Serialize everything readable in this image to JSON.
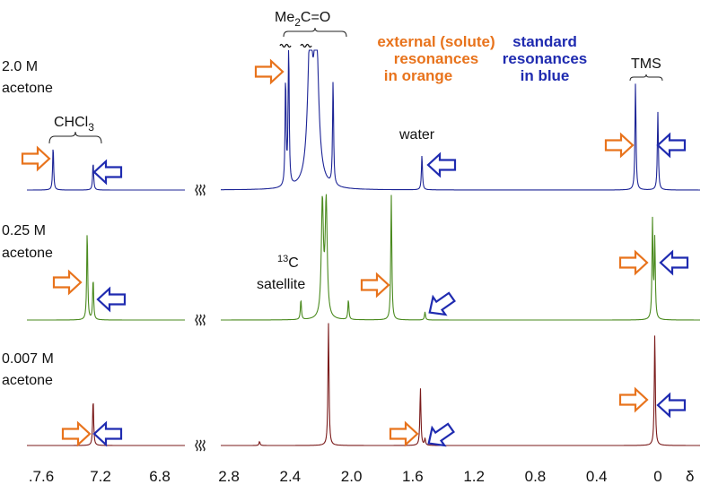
{
  "chart_data": {
    "type": "line",
    "title": "",
    "xlabel": "δ",
    "x_axis": {
      "reversed": true,
      "segments": [
        [
          7.7,
          6.64
        ],
        [
          2.9,
          -0.3
        ]
      ],
      "ticks": [
        {
          "value": 7.6,
          "label": ".7.6"
        },
        {
          "value": 7.2,
          "label": "7.2"
        },
        {
          "value": 6.8,
          "label": "6.8"
        },
        {
          "value": 2.8,
          "label": "2.8"
        },
        {
          "value": 2.4,
          "label": "2.4"
        },
        {
          "value": 2.0,
          "label": "2.0"
        },
        {
          "value": 1.6,
          "label": "1.6"
        },
        {
          "value": 1.2,
          "label": "1.2"
        },
        {
          "value": 0.8,
          "label": "0.8"
        },
        {
          "value": 0.4,
          "label": "0.4"
        },
        {
          "value": 0,
          "label": "0"
        }
      ],
      "unit_label": "δ"
    },
    "series": [
      {
        "name": "2.0 M acetone",
        "label_line1": "2.0 M",
        "label_line2": "acetone",
        "color": "#1c2496",
        "peaks": [
          {
            "ppm": 7.52,
            "intensity": 0.33,
            "width": 0.004
          },
          {
            "ppm": 7.25,
            "intensity": 0.21,
            "width": 0.004
          },
          {
            "ppm": 2.43,
            "intensity": 0.8,
            "width": 0.004
          },
          {
            "ppm": 2.41,
            "intensity": 1.1,
            "width": 0.004
          },
          {
            "ppm": 2.27,
            "intensity": 1.1,
            "width": 0.018
          },
          {
            "ppm": 2.23,
            "intensity": 1.1,
            "width": 0.018
          },
          {
            "ppm": 2.12,
            "intensity": 0.78,
            "width": 0.004
          },
          {
            "ppm": 1.54,
            "intensity": 0.26,
            "width": 0.004
          },
          {
            "ppm": 0.146,
            "intensity": 0.8,
            "width": 0.004
          },
          {
            "ppm": 0.0,
            "intensity": 0.58,
            "width": 0.004
          }
        ]
      },
      {
        "name": "0.25 M acetone",
        "label_line1": "0.25 M",
        "label_line2": "acetone",
        "color": "#4a8a1e",
        "peaks": [
          {
            "ppm": 7.29,
            "intensity": 0.67,
            "width": 0.004
          },
          {
            "ppm": 7.25,
            "intensity": 0.31,
            "width": 0.004
          },
          {
            "ppm": 2.33,
            "intensity": 0.15,
            "width": 0.004
          },
          {
            "ppm": 2.19,
            "intensity": 0.86,
            "width": 0.008
          },
          {
            "ppm": 2.165,
            "intensity": 0.86,
            "width": 0.008
          },
          {
            "ppm": 2.02,
            "intensity": 0.15,
            "width": 0.004
          },
          {
            "ppm": 1.74,
            "intensity": 0.93,
            "width": 0.004
          },
          {
            "ppm": 1.52,
            "intensity": 0.06,
            "width": 0.004
          },
          {
            "ppm": 0.035,
            "intensity": 0.73,
            "width": 0.004
          },
          {
            "ppm": 0.02,
            "intensity": 0.59,
            "width": 0.004
          }
        ]
      },
      {
        "name": "0.007 M acetone",
        "label_line1": "0.007 M",
        "label_line2": "acetone",
        "color": "#7a1a1a",
        "peaks": [
          {
            "ppm": 7.25,
            "intensity": 0.35,
            "width": 0.004
          },
          {
            "ppm": 2.6,
            "intensity": 0.03,
            "width": 0.004
          },
          {
            "ppm": 2.15,
            "intensity": 0.91,
            "width": 0.004
          },
          {
            "ppm": 1.55,
            "intensity": 0.43,
            "width": 0.004
          },
          {
            "ppm": 1.52,
            "intensity": 0.05,
            "width": 0.004
          },
          {
            "ppm": 0.02,
            "intensity": 0.83,
            "width": 0.004
          }
        ]
      }
    ],
    "annotations": {
      "chcl3": "CHCl",
      "chcl3_sub": "3",
      "acetone_main": "Me",
      "acetone_sub": "2",
      "acetone_rest": "C=O",
      "water": "water",
      "tms": "TMS",
      "c13_sup": "13",
      "c13_c": "C",
      "satellite": "satellite"
    },
    "legend": {
      "orange_lines": [
        "external (solute)",
        "resonances",
        "in orange"
      ],
      "blue_lines": [
        "standard",
        "resonances",
        "in blue"
      ],
      "orange_color": "#e8731c",
      "blue_color": "#1f2bb0"
    }
  }
}
